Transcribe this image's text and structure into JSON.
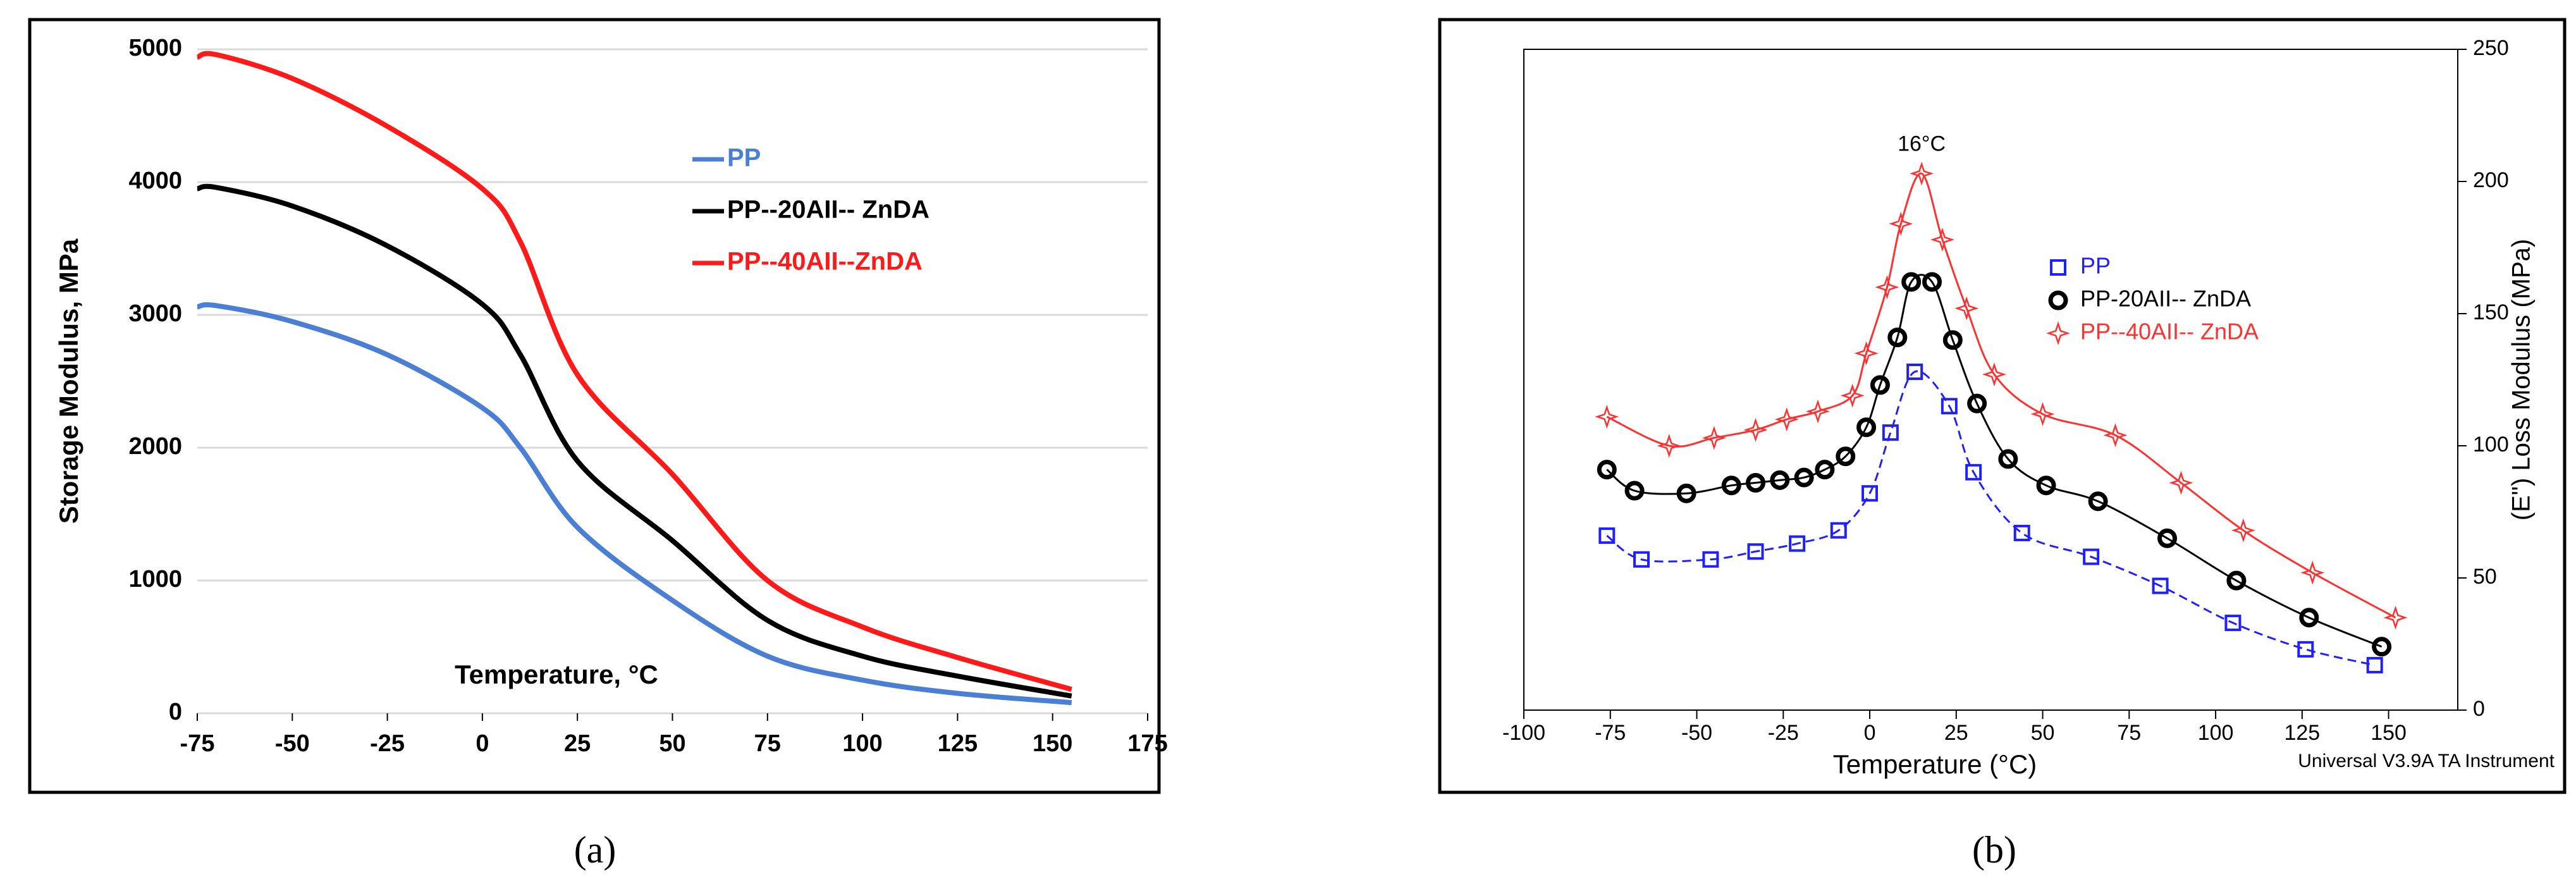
{
  "chart_data": [
    {
      "type": "line",
      "xlabel": "Temperature, °C",
      "ylabel": "Storage Modulus, MPa",
      "caption": "(a)",
      "x": [
        -75,
        -70,
        -50,
        -25,
        0,
        10,
        25,
        50,
        75,
        100,
        125,
        155
      ],
      "xlim": [
        -75,
        175
      ],
      "xticks": [
        -75,
        -50,
        -25,
        0,
        25,
        50,
        75,
        100,
        125,
        150,
        175
      ],
      "ylim": [
        0,
        5000
      ],
      "yticks": [
        0,
        1000,
        2000,
        3000,
        4000,
        5000
      ],
      "grid": true,
      "series": [
        {
          "name": "PP",
          "color": "#4a7fd4",
          "values": [
            3060,
            3070,
            2950,
            2700,
            2300,
            2000,
            1400,
            850,
            430,
            250,
            150,
            80
          ]
        },
        {
          "name": "PP--20AII-- ZnDA",
          "color": "#000000",
          "values": [
            3950,
            3960,
            3820,
            3520,
            3080,
            2700,
            1900,
            1300,
            700,
            430,
            280,
            130
          ]
        },
        {
          "name": "PP--40AII--ZnDA",
          "color": "#ff1a1a",
          "values": [
            4940,
            4960,
            4780,
            4420,
            3950,
            3550,
            2550,
            1800,
            1000,
            650,
            420,
            180
          ]
        }
      ]
    },
    {
      "type": "line",
      "xlabel": "Temperature (°C)",
      "y2label": "(E\") Loss Modulus (MPa)",
      "caption": "(b)",
      "annotation": "16°C",
      "footnote": "Universal V3.9A TA Instrument",
      "xlim": [
        -100,
        170
      ],
      "xticks": [
        -100,
        -75,
        -50,
        -25,
        0,
        25,
        50,
        75,
        100,
        125,
        150
      ],
      "y2lim": [
        0,
        250
      ],
      "y2ticks": [
        0,
        50,
        100,
        150,
        200,
        250
      ],
      "series": [
        {
          "name": "PP",
          "color": "#2020ff",
          "marker": "square",
          "dashed": true,
          "axis": "y2",
          "x": [
            -76,
            -66,
            -46,
            -33,
            -21,
            -9,
            0,
            6,
            13,
            23,
            30,
            44,
            64,
            84,
            105,
            126,
            146
          ],
          "values": [
            66,
            57,
            57,
            60,
            63,
            68,
            82,
            105,
            128,
            115,
            90,
            67,
            58,
            47,
            33,
            23,
            17
          ]
        },
        {
          "name": "PP-20AII-- ZnDA",
          "color": "#000000",
          "marker": "circle",
          "dashed": false,
          "axis": "y2",
          "x": [
            -76,
            -68,
            -53,
            -40,
            -33,
            -26,
            -19,
            -13,
            -7,
            -1,
            3,
            8,
            12,
            18,
            24,
            31,
            40,
            51,
            66,
            86,
            106,
            127,
            148
          ],
          "values": [
            91,
            83,
            82,
            85,
            86,
            87,
            88,
            91,
            96,
            107,
            123,
            141,
            162,
            162,
            140,
            116,
            95,
            85,
            79,
            65,
            49,
            35,
            24
          ]
        },
        {
          "name": "PP--40AII-- ZnDA",
          "color": "#ff3030",
          "marker": "star",
          "dashed": false,
          "axis": "y2",
          "x": [
            -76,
            -58,
            -45,
            -33,
            -24,
            -15,
            -5,
            -1,
            5,
            9,
            15,
            21,
            28,
            36,
            50,
            71,
            90,
            108,
            128,
            152
          ],
          "values": [
            111,
            100,
            103,
            106,
            110,
            113,
            119,
            135,
            160,
            184,
            203,
            178,
            152,
            127,
            112,
            104,
            86,
            68,
            52,
            35
          ]
        }
      ]
    }
  ]
}
